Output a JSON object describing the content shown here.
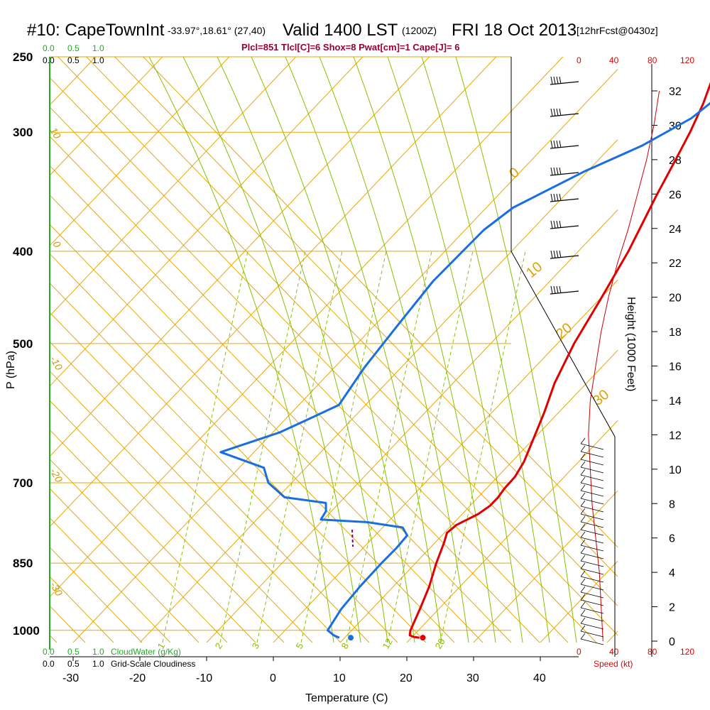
{
  "header": {
    "station": "#10: CapeTownInt",
    "coords": "-33.97°,18.61° (27,40)",
    "valid": "Valid 1400 LST",
    "utc": "(1200Z)",
    "date": "FRI 18 Oct 2013",
    "forecast": "[12hrFcst@0430z]"
  },
  "indices": "Plcl=851 Tlcl[C]=6 Shox=8 Pwat[cm]=1 Cape[J]= 6",
  "cloud_scale": {
    "top_green": [
      "0.0",
      "0.5",
      "1.0"
    ],
    "top_black": [
      "0.0",
      "0.5",
      "1.0"
    ],
    "bottom_green": [
      "0.0",
      "0.5",
      "1.0"
    ],
    "bottom_green_label": "CloudWater (g/Kg)",
    "bottom_black": [
      "0.0",
      "0.5",
      "1.0"
    ],
    "bottom_black_label": "Grid-Scale Cloudiness"
  },
  "speed_scale": {
    "top": [
      "0",
      "40",
      "80",
      "120"
    ],
    "bottom": [
      "0",
      "40",
      "80",
      "120"
    ],
    "label": "Speed (kt)"
  },
  "isotherm_labels": [
    "10",
    "0",
    "-10",
    "-20",
    "-30"
  ],
  "adiabat_labels": [
    "0",
    "10",
    "20",
    "30"
  ],
  "mixing_ratio_labels": [
    "1",
    "2",
    "3",
    "5",
    "8",
    "12",
    "20"
  ],
  "colors": {
    "temperature": "#e00000",
    "dewpoint": "#1a6fe0",
    "isobar": "#e8a800",
    "dry_adiabat": "#e8a800",
    "moist_adiabat": "#88c000",
    "mixing_ratio": "#88c000",
    "cloud": "#22aa22",
    "wind_speed": "#cc0000"
  },
  "chart_data": {
    "type": "line",
    "title": "",
    "xlabel": "Temperature (C)",
    "ylabel": "P (hPa)",
    "y2label": "Height (1000 Feet)",
    "x_ticks": [
      "-30",
      "-20",
      "-10",
      "0",
      "10",
      "20",
      "30",
      "40"
    ],
    "pressure_ticks": [
      "250",
      "300",
      "400",
      "500",
      "700",
      "850",
      "1000"
    ],
    "pressure_tick_values": [
      250,
      300,
      400,
      500,
      700,
      850,
      1000
    ],
    "height_ticks": [
      "0",
      "2",
      "4",
      "6",
      "8",
      "10",
      "12",
      "14",
      "16",
      "18",
      "20",
      "22",
      "24",
      "26",
      "28",
      "30",
      "32"
    ],
    "xlim": [
      -34,
      46
    ],
    "ylim_hpa": [
      1030,
      250
    ],
    "surface_temperature_c": 22.4,
    "surface_dewpoint_c": 11.6,
    "series": [
      {
        "points": [
          [
            1018,
            21.2
          ],
          [
            1016,
            20.2
          ],
          [
            1012,
            19.4
          ],
          [
            1000,
            18.8
          ],
          [
            950,
            17.2
          ],
          [
            900,
            15.4
          ],
          [
            850,
            13.1
          ],
          [
            810,
            11.4
          ],
          [
            790,
            10.4
          ],
          [
            775,
            10.7
          ],
          [
            755,
            12.4
          ],
          [
            740,
            13.0
          ],
          [
            725,
            13.0
          ],
          [
            710,
            12.7
          ],
          [
            690,
            12.6
          ],
          [
            665,
            11.8
          ],
          [
            630,
            10.0
          ],
          [
            590,
            7.8
          ],
          [
            550,
            5.2
          ],
          [
            500,
            2.5
          ],
          [
            450,
            0.2
          ],
          [
            400,
            -2.5
          ],
          [
            350,
            -6.2
          ],
          [
            320,
            -8.5
          ],
          [
            300,
            -10.2
          ],
          [
            280,
            -12.3
          ],
          [
            265,
            -14.3
          ]
        ]
      },
      {
        "points": [
          [
            1018,
            9.2
          ],
          [
            1012,
            8.0
          ],
          [
            1000,
            6.4
          ],
          [
            950,
            5.4
          ],
          [
            900,
            5.0
          ],
          [
            850,
            4.9
          ],
          [
            820,
            5.0
          ],
          [
            795,
            4.8
          ],
          [
            780,
            3.0
          ],
          [
            770,
            -3.0
          ],
          [
            765,
            -10.4
          ],
          [
            750,
            -10.8
          ],
          [
            735,
            -12.0
          ],
          [
            725,
            -19.0
          ],
          [
            700,
            -23.5
          ],
          [
            675,
            -26.3
          ],
          [
            650,
            -35.0
          ],
          [
            620,
            -29.0
          ],
          [
            600,
            -26.5
          ],
          [
            580,
            -24.0
          ],
          [
            530,
            -25.5
          ],
          [
            480,
            -26.5
          ],
          [
            430,
            -27.5
          ],
          [
            380,
            -27.2
          ],
          [
            360,
            -26.0
          ],
          [
            330,
            -20.5
          ],
          [
            310,
            -15.5
          ],
          [
            290,
            -12.0
          ],
          [
            275,
            -11.0
          ]
        ]
      }
    ],
    "lcl_marker": {
      "pressure_hpa": 851,
      "temperature_c": 6
    },
    "wind_profile_kt": {
      "heights_kft": [
        0,
        2,
        4,
        6,
        8,
        10,
        12,
        14,
        16,
        18,
        20,
        22,
        24,
        26,
        28,
        30,
        32
      ],
      "speeds": [
        26,
        24,
        22,
        18,
        14,
        12,
        10,
        12,
        18,
        24,
        32,
        42,
        54,
        64,
        74,
        82,
        88
      ]
    }
  }
}
